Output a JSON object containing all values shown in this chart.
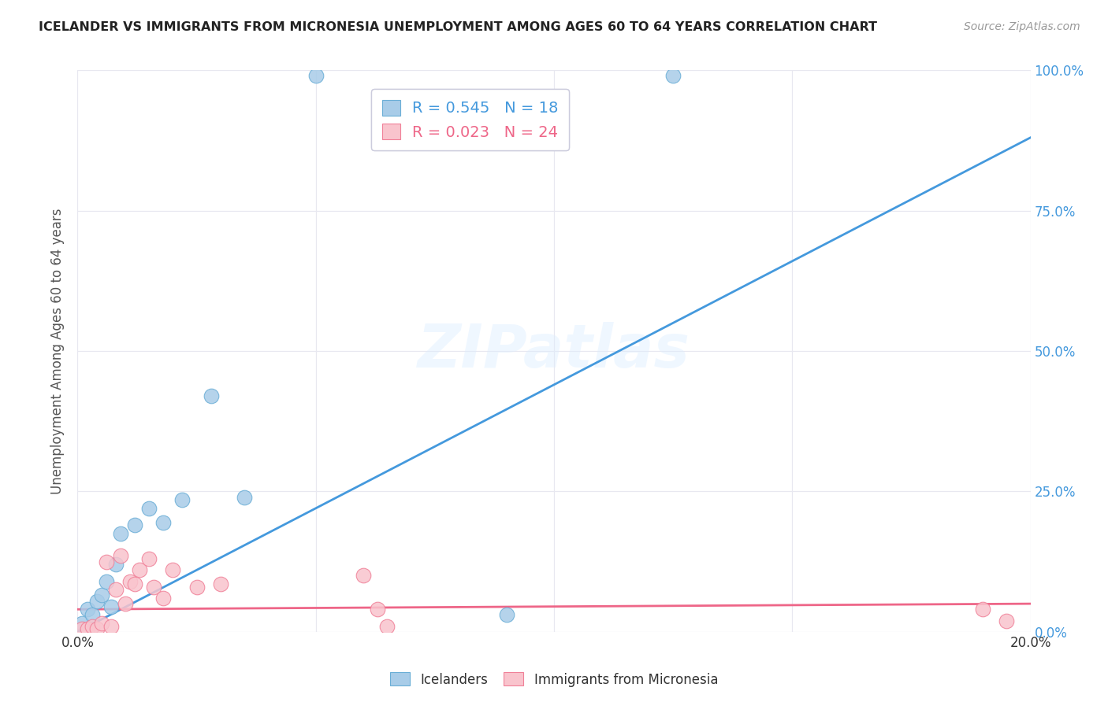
{
  "title": "ICELANDER VS IMMIGRANTS FROM MICRONESIA UNEMPLOYMENT AMONG AGES 60 TO 64 YEARS CORRELATION CHART",
  "source": "Source: ZipAtlas.com",
  "ylabel": "Unemployment Among Ages 60 to 64 years",
  "xlim": [
    0,
    0.2
  ],
  "ylim": [
    0,
    1.0
  ],
  "xticks": [
    0.0,
    0.05,
    0.1,
    0.15,
    0.2
  ],
  "xtick_labels": [
    "0.0%",
    "",
    "",
    "",
    "20.0%"
  ],
  "ytick_vals": [
    0.0,
    0.25,
    0.5,
    0.75,
    1.0
  ],
  "ytick_labels_right": [
    "0.0%",
    "25.0%",
    "50.0%",
    "75.0%",
    "100.0%"
  ],
  "watermark": "ZIPatlas",
  "legend_blue_r": "R = 0.545",
  "legend_blue_n": "N = 18",
  "legend_pink_r": "R = 0.023",
  "legend_pink_n": "N = 24",
  "blue_scatter_color": "#a8cce8",
  "blue_edge_color": "#6aaed6",
  "pink_scatter_color": "#f9c4cd",
  "pink_edge_color": "#f08098",
  "blue_line_color": "#4499dd",
  "pink_line_color": "#ee6688",
  "grid_color": "#e8e8f0",
  "right_tick_color": "#4499dd",
  "title_color": "#222222",
  "icelanders_x": [
    0.001,
    0.002,
    0.003,
    0.004,
    0.005,
    0.006,
    0.007,
    0.008,
    0.009,
    0.012,
    0.015,
    0.018,
    0.022,
    0.028,
    0.035,
    0.05,
    0.09,
    0.125
  ],
  "icelanders_y": [
    0.015,
    0.04,
    0.03,
    0.055,
    0.065,
    0.09,
    0.045,
    0.12,
    0.175,
    0.19,
    0.22,
    0.195,
    0.235,
    0.42,
    0.24,
    0.99,
    0.03,
    0.99
  ],
  "micronesia_x": [
    0.001,
    0.002,
    0.003,
    0.004,
    0.005,
    0.006,
    0.007,
    0.008,
    0.009,
    0.01,
    0.011,
    0.012,
    0.013,
    0.015,
    0.016,
    0.018,
    0.02,
    0.025,
    0.03,
    0.06,
    0.063,
    0.065,
    0.19,
    0.195
  ],
  "micronesia_y": [
    0.005,
    0.005,
    0.01,
    0.005,
    0.015,
    0.125,
    0.01,
    0.075,
    0.135,
    0.05,
    0.09,
    0.085,
    0.11,
    0.13,
    0.08,
    0.06,
    0.11,
    0.08,
    0.085,
    0.1,
    0.04,
    0.01,
    0.04,
    0.02
  ],
  "blue_trendline_x": [
    0.0,
    0.2
  ],
  "blue_trendline_y": [
    0.0,
    0.88
  ],
  "pink_trendline_x": [
    0.0,
    0.2
  ],
  "pink_trendline_y": [
    0.04,
    0.05
  ]
}
